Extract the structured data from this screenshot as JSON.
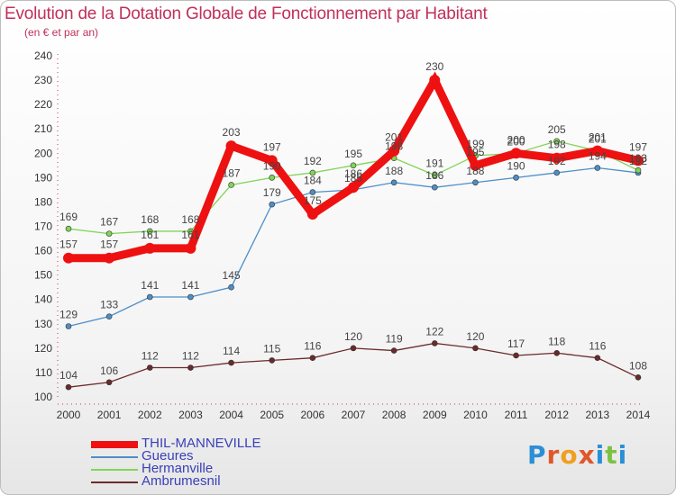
{
  "title": "Evolution de la Dotation Globale de Fonctionnement par Habitant",
  "subtitle": "(en € et par an)",
  "brand": {
    "text": "Proxiti"
  },
  "chart_data": {
    "type": "line",
    "x": [
      "2000",
      "2001",
      "2002",
      "2003",
      "2004",
      "2005",
      "2006",
      "2007",
      "2008",
      "2009",
      "2010",
      "2011",
      "2012",
      "2013",
      "2014"
    ],
    "ylim": [
      100,
      240
    ],
    "yticks": [
      100,
      110,
      120,
      130,
      140,
      150,
      160,
      170,
      180,
      190,
      200,
      210,
      220,
      230,
      240
    ],
    "grid": false,
    "legend_position": "bottom-left",
    "series": [
      {
        "name": "THIL-MANNEVILLE",
        "color": "#ee1111",
        "values": [
          157,
          157,
          161,
          161,
          203,
          197,
          175,
          186,
          201,
          230,
          195,
          200,
          198,
          201,
          197
        ],
        "labels": [
          "157",
          "157",
          "161",
          "161",
          "203",
          "197",
          "175",
          "186",
          "201",
          "230",
          "195",
          "200",
          "198",
          "201",
          "197"
        ]
      },
      {
        "name": "Gueures",
        "color": "#4d8ec7",
        "values": [
          129,
          133,
          141,
          141,
          145,
          179,
          184,
          185,
          188,
          186,
          188,
          190,
          192,
          194,
          192
        ],
        "labels": [
          "129",
          "133",
          "141",
          "141",
          "145",
          "179",
          "184",
          "185",
          "188",
          "186",
          "188",
          "190",
          "192",
          "194",
          "192"
        ]
      },
      {
        "name": "Hermanville",
        "color": "#80d456",
        "values": [
          169,
          167,
          168,
          168,
          187,
          190,
          192,
          195,
          198,
          191,
          199,
          200,
          205,
          201,
          193
        ],
        "labels": [
          "169",
          "167",
          "168",
          "168",
          "187",
          "190",
          "192",
          "195",
          "198",
          "191",
          "199",
          "200",
          "205",
          "201",
          "193"
        ]
      },
      {
        "name": "Ambrumesnil",
        "color": "#6b2a2a",
        "values": [
          104,
          106,
          112,
          112,
          114,
          115,
          116,
          120,
          119,
          122,
          120,
          117,
          118,
          116,
          108
        ],
        "labels": [
          "104",
          "106",
          "112",
          "112",
          "114",
          "115",
          "116",
          "120",
          "119",
          "122",
          "120",
          "117",
          "118",
          "116",
          "108"
        ]
      }
    ]
  },
  "colors": {
    "title": "#c0305a",
    "legend_text": "#3a40b8",
    "axis": "#999999"
  }
}
